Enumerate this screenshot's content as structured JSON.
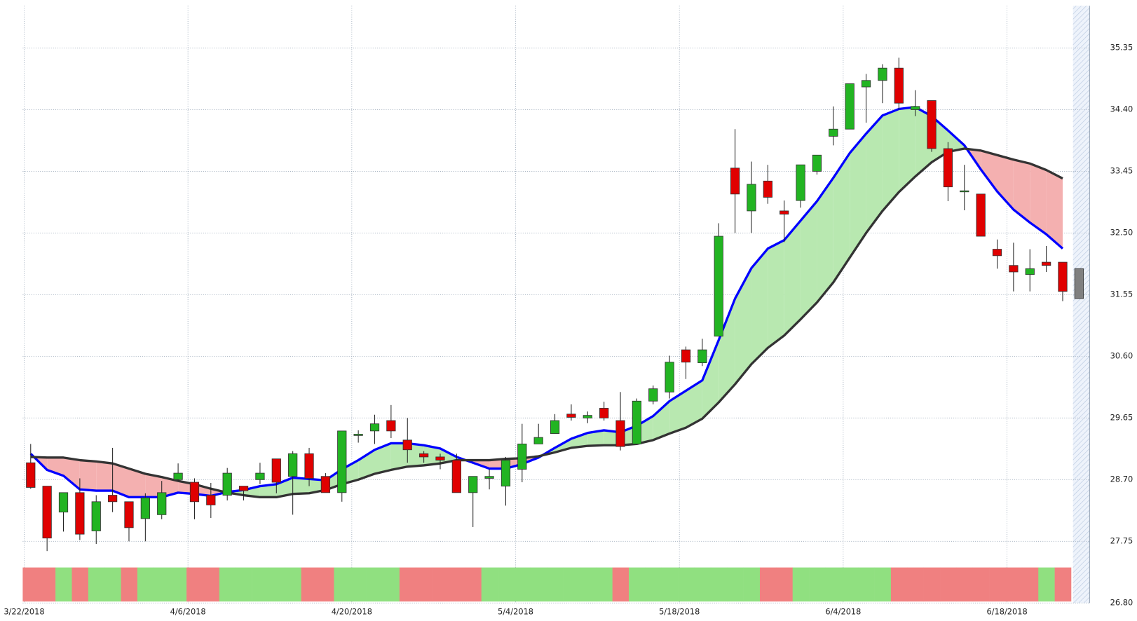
{
  "chart_data": {
    "type": "candlestick",
    "categories": [
      "3/22/2018",
      null,
      null,
      null,
      null,
      null,
      null,
      null,
      null,
      null,
      "4/6/2018",
      null,
      null,
      null,
      null,
      null,
      null,
      null,
      null,
      null,
      "4/20/2018",
      null,
      null,
      null,
      null,
      null,
      null,
      null,
      null,
      null,
      "5/4/2018",
      null,
      null,
      null,
      null,
      null,
      null,
      null,
      null,
      null,
      "5/18/2018",
      null,
      null,
      null,
      null,
      null,
      null,
      null,
      null,
      null,
      "6/4/2018",
      null,
      null,
      null,
      null,
      null,
      null,
      null,
      null,
      null,
      "6/18/2018",
      null,
      null,
      null,
      null
    ],
    "open": [
      28.96,
      28.6,
      28.2,
      28.5,
      27.91,
      28.46,
      28.36,
      28.1,
      28.16,
      28.7,
      28.66,
      28.46,
      28.46,
      28.6,
      28.7,
      29.02,
      28.75,
      29.1,
      28.75,
      28.5,
      29.38,
      29.45,
      29.61,
      29.31,
      29.1,
      29.05,
      29.0,
      28.5,
      28.72,
      28.6,
      28.86,
      29.25,
      29.41,
      29.71,
      29.65,
      29.8,
      29.61,
      29.25,
      29.91,
      30.05,
      30.7,
      30.5,
      30.91,
      33.5,
      32.84,
      33.3,
      32.84,
      33.0,
      33.45,
      33.99,
      34.1,
      34.75,
      34.85,
      35.04,
      34.4,
      34.54,
      33.8,
      33.15,
      33.1,
      32.25,
      32.0,
      31.86,
      32.05,
      32.05,
      31.95
    ],
    "high": [
      29.25,
      28.6,
      28.5,
      28.72,
      28.46,
      29.19,
      28.36,
      28.49,
      28.68,
      28.95,
      28.72,
      28.65,
      28.88,
      28.6,
      28.96,
      29.02,
      29.14,
      29.19,
      28.8,
      29.45,
      29.46,
      29.7,
      29.85,
      29.65,
      29.14,
      29.1,
      29.1,
      28.75,
      28.86,
      29.05,
      29.56,
      29.56,
      29.71,
      29.86,
      29.75,
      29.9,
      30.05,
      29.95,
      30.15,
      30.61,
      30.75,
      30.87,
      32.65,
      34.1,
      33.6,
      33.55,
      33.0,
      33.55,
      33.7,
      34.45,
      34.8,
      34.95,
      35.1,
      35.2,
      34.7,
      34.54,
      33.9,
      33.55,
      33.1,
      32.4,
      32.35,
      32.25,
      32.3,
      32.05,
      31.95
    ],
    "low": [
      28.56,
      27.6,
      27.9,
      27.77,
      27.71,
      28.2,
      27.75,
      27.75,
      28.09,
      28.68,
      28.09,
      28.11,
      28.38,
      28.38,
      28.63,
      28.49,
      28.16,
      28.6,
      28.5,
      28.36,
      29.27,
      29.25,
      29.34,
      28.96,
      28.96,
      28.86,
      28.5,
      27.97,
      28.55,
      28.3,
      28.66,
      29.25,
      29.41,
      29.61,
      29.57,
      29.61,
      29.15,
      29.25,
      29.86,
      29.95,
      30.25,
      30.45,
      30.91,
      32.5,
      32.5,
      32.95,
      32.36,
      32.89,
      33.4,
      33.85,
      34.1,
      34.2,
      34.5,
      34.4,
      34.3,
      33.75,
      32.99,
      32.85,
      32.45,
      31.95,
      31.6,
      31.6,
      31.9,
      31.45,
      31.49
    ],
    "close": [
      28.58,
      27.8,
      28.5,
      27.86,
      28.36,
      28.36,
      27.96,
      28.42,
      28.5,
      28.8,
      28.36,
      28.31,
      28.8,
      28.53,
      28.8,
      28.66,
      29.1,
      28.72,
      28.5,
      29.45,
      29.4,
      29.56,
      29.45,
      29.16,
      29.05,
      29.0,
      28.5,
      28.75,
      28.75,
      29.0,
      29.25,
      29.35,
      29.61,
      29.66,
      29.69,
      29.65,
      29.21,
      29.91,
      30.1,
      30.51,
      30.51,
      30.7,
      32.45,
      33.1,
      33.25,
      33.05,
      32.79,
      33.55,
      33.7,
      34.1,
      34.8,
      34.85,
      35.04,
      34.5,
      34.45,
      33.8,
      33.21,
      33.15,
      32.45,
      32.15,
      31.9,
      31.95,
      32.0,
      31.6,
      31.49
    ],
    "up_color": "#22b422",
    "down_color": "#e00000",
    "last_color": "#808080",
    "lines": [
      {
        "color": "#0000ff",
        "values": [
          29.1,
          28.85,
          28.76,
          28.55,
          28.53,
          28.53,
          28.43,
          28.43,
          28.43,
          28.5,
          28.48,
          28.45,
          28.51,
          28.54,
          28.6,
          28.63,
          28.73,
          28.71,
          28.69,
          28.86,
          29.0,
          29.16,
          29.26,
          29.26,
          29.23,
          29.18,
          29.05,
          28.96,
          28.87,
          28.87,
          28.94,
          29.04,
          29.19,
          29.33,
          29.42,
          29.46,
          29.43,
          29.53,
          29.68,
          29.91,
          30.07,
          30.23,
          30.85,
          31.49,
          31.96,
          32.26,
          32.39,
          32.69,
          32.99,
          33.35,
          33.73,
          34.03,
          34.31,
          34.41,
          34.44,
          34.3,
          34.08,
          33.85,
          33.48,
          33.14,
          32.86,
          32.66,
          32.48,
          32.26,
          null
        ]
      },
      {
        "color": "#333333",
        "values": [
          29.05,
          29.04,
          29.04,
          29.0,
          28.98,
          28.95,
          28.87,
          28.79,
          28.74,
          28.68,
          28.63,
          28.56,
          28.5,
          28.46,
          28.43,
          28.43,
          28.48,
          28.49,
          28.54,
          28.63,
          28.7,
          28.79,
          28.85,
          28.9,
          28.92,
          28.95,
          29.0,
          29.0,
          29.0,
          29.02,
          29.03,
          29.06,
          29.12,
          29.19,
          29.22,
          29.23,
          29.23,
          29.25,
          29.31,
          29.41,
          29.5,
          29.64,
          29.89,
          30.17,
          30.48,
          30.73,
          30.92,
          31.17,
          31.43,
          31.74,
          32.12,
          32.5,
          32.84,
          33.13,
          33.37,
          33.59,
          33.75,
          33.8,
          33.77,
          33.7,
          33.63,
          33.57,
          33.47,
          33.34,
          null
        ]
      }
    ],
    "fill_up_color": "#b8e8b0",
    "fill_down_color": "#f4b0b0",
    "band_colors": [
      "#f08080",
      "#f08080",
      "#90e080",
      "#f08080",
      "#90e080",
      "#90e080",
      "#f08080",
      "#90e080",
      "#90e080",
      "#90e080",
      "#f08080",
      "#f08080",
      "#90e080",
      "#90e080",
      "#90e080",
      "#90e080",
      "#90e080",
      "#f08080",
      "#f08080",
      "#90e080",
      "#90e080",
      "#90e080",
      "#90e080",
      "#f08080",
      "#f08080",
      "#f08080",
      "#f08080",
      "#f08080",
      "#90e080",
      "#90e080",
      "#90e080",
      "#90e080",
      "#90e080",
      "#90e080",
      "#90e080",
      "#90e080",
      "#f08080",
      "#90e080",
      "#90e080",
      "#90e080",
      "#90e080",
      "#90e080",
      "#90e080",
      "#90e080",
      "#90e080",
      "#f08080",
      "#f08080",
      "#90e080",
      "#90e080",
      "#90e080",
      "#90e080",
      "#90e080",
      "#90e080",
      "#f08080",
      "#f08080",
      "#f08080",
      "#f08080",
      "#f08080",
      "#f08080",
      "#f08080",
      "#f08080",
      "#f08080",
      "#90e080",
      "#f08080",
      null
    ],
    "ylim": [
      26.8,
      36.0
    ],
    "yticks": [
      {
        "value": 26.8,
        "label": "26.80"
      },
      27.75,
      {
        "value": 28.7,
        "label": "28.70"
      },
      29.65,
      {
        "value": 30.6,
        "label": "30.60"
      },
      31.55,
      {
        "value": 32.5,
        "label": "32.50"
      },
      33.45,
      {
        "value": 34.4,
        "label": "34.40"
      },
      35.35
    ],
    "grid": true
  }
}
